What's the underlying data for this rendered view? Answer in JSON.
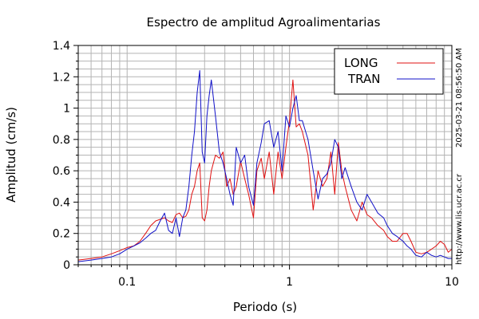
{
  "chart_data": {
    "type": "line",
    "title": "Espectro de amplitud Agroalimentarias",
    "xlabel": "Periodo (s)",
    "ylabel": "Amplitud (cm/s)",
    "x_scale": "log",
    "xlim": [
      0.05,
      10
    ],
    "ylim": [
      0,
      1.4
    ],
    "x_ticks": [
      "0.1",
      "1",
      "10"
    ],
    "y_ticks": [
      "0",
      "0.2",
      "0.4",
      "0.6",
      "0.8",
      "1",
      "1.2",
      "1.4"
    ],
    "grid": true,
    "legend_position": "top-right",
    "series": [
      {
        "name": "LONG",
        "color": "#e01010",
        "x": [
          0.05,
          0.06,
          0.07,
          0.08,
          0.09,
          0.1,
          0.11,
          0.12,
          0.13,
          0.14,
          0.15,
          0.16,
          0.17,
          0.18,
          0.19,
          0.2,
          0.21,
          0.22,
          0.23,
          0.24,
          0.25,
          0.26,
          0.27,
          0.28,
          0.29,
          0.3,
          0.31,
          0.32,
          0.33,
          0.35,
          0.37,
          0.39,
          0.41,
          0.43,
          0.45,
          0.47,
          0.5,
          0.53,
          0.56,
          0.6,
          0.63,
          0.67,
          0.7,
          0.75,
          0.8,
          0.85,
          0.9,
          0.95,
          1.0,
          1.05,
          1.1,
          1.15,
          1.2,
          1.3,
          1.4,
          1.5,
          1.6,
          1.7,
          1.8,
          1.9,
          2.0,
          2.1,
          2.2,
          2.4,
          2.6,
          2.8,
          3.0,
          3.2,
          3.5,
          3.8,
          4.0,
          4.3,
          4.6,
          5.0,
          5.3,
          5.6,
          6.0,
          6.5,
          7.0,
          7.5,
          8.0,
          8.5,
          9.0,
          9.5,
          10.0
        ],
        "y": [
          0.03,
          0.04,
          0.05,
          0.07,
          0.09,
          0.11,
          0.12,
          0.15,
          0.2,
          0.25,
          0.28,
          0.29,
          0.3,
          0.28,
          0.27,
          0.32,
          0.33,
          0.3,
          0.31,
          0.35,
          0.45,
          0.5,
          0.6,
          0.65,
          0.3,
          0.28,
          0.35,
          0.5,
          0.6,
          0.7,
          0.68,
          0.72,
          0.5,
          0.55,
          0.45,
          0.5,
          0.66,
          0.55,
          0.45,
          0.3,
          0.6,
          0.68,
          0.55,
          0.72,
          0.45,
          0.72,
          0.55,
          0.75,
          0.92,
          1.18,
          0.88,
          0.9,
          0.85,
          0.7,
          0.35,
          0.6,
          0.5,
          0.55,
          0.72,
          0.45,
          0.78,
          0.6,
          0.5,
          0.35,
          0.28,
          0.4,
          0.32,
          0.3,
          0.25,
          0.22,
          0.18,
          0.15,
          0.15,
          0.2,
          0.2,
          0.15,
          0.08,
          0.07,
          0.08,
          0.1,
          0.12,
          0.15,
          0.13,
          0.08,
          0.1
        ]
      },
      {
        "name": "TRAN",
        "color": "#1010c8",
        "x": [
          0.05,
          0.06,
          0.07,
          0.08,
          0.09,
          0.1,
          0.11,
          0.12,
          0.13,
          0.14,
          0.15,
          0.16,
          0.17,
          0.18,
          0.19,
          0.2,
          0.21,
          0.22,
          0.23,
          0.24,
          0.25,
          0.26,
          0.27,
          0.28,
          0.29,
          0.3,
          0.31,
          0.32,
          0.33,
          0.35,
          0.37,
          0.39,
          0.41,
          0.43,
          0.45,
          0.47,
          0.5,
          0.53,
          0.56,
          0.6,
          0.63,
          0.67,
          0.7,
          0.75,
          0.8,
          0.85,
          0.9,
          0.95,
          1.0,
          1.05,
          1.1,
          1.15,
          1.2,
          1.3,
          1.4,
          1.5,
          1.6,
          1.7,
          1.8,
          1.9,
          2.0,
          2.1,
          2.2,
          2.4,
          2.6,
          2.8,
          3.0,
          3.2,
          3.5,
          3.8,
          4.0,
          4.3,
          4.6,
          5.0,
          5.3,
          5.6,
          6.0,
          6.5,
          7.0,
          7.5,
          8.0,
          8.5,
          9.0,
          9.5,
          10.0
        ],
        "y": [
          0.02,
          0.03,
          0.04,
          0.05,
          0.07,
          0.1,
          0.12,
          0.14,
          0.17,
          0.2,
          0.22,
          0.28,
          0.33,
          0.22,
          0.2,
          0.3,
          0.18,
          0.3,
          0.35,
          0.5,
          0.7,
          0.85,
          1.1,
          1.24,
          0.72,
          0.65,
          0.95,
          1.08,
          1.18,
          0.95,
          0.72,
          0.65,
          0.55,
          0.45,
          0.38,
          0.75,
          0.65,
          0.7,
          0.5,
          0.38,
          0.65,
          0.78,
          0.9,
          0.92,
          0.75,
          0.85,
          0.6,
          0.95,
          0.88,
          1.0,
          1.08,
          0.92,
          0.92,
          0.8,
          0.6,
          0.42,
          0.55,
          0.58,
          0.65,
          0.8,
          0.75,
          0.55,
          0.62,
          0.5,
          0.4,
          0.35,
          0.45,
          0.4,
          0.33,
          0.3,
          0.25,
          0.2,
          0.18,
          0.15,
          0.12,
          0.1,
          0.06,
          0.05,
          0.08,
          0.06,
          0.05,
          0.06,
          0.05,
          0.04,
          0.04
        ]
      }
    ]
  },
  "side": {
    "timestamp": "2025-03-21 08:56:50 AM",
    "website": "http://www.lis.ucr.ac.cr"
  },
  "colors": {
    "grid": "#b4b4b4",
    "axis": "#000000"
  }
}
